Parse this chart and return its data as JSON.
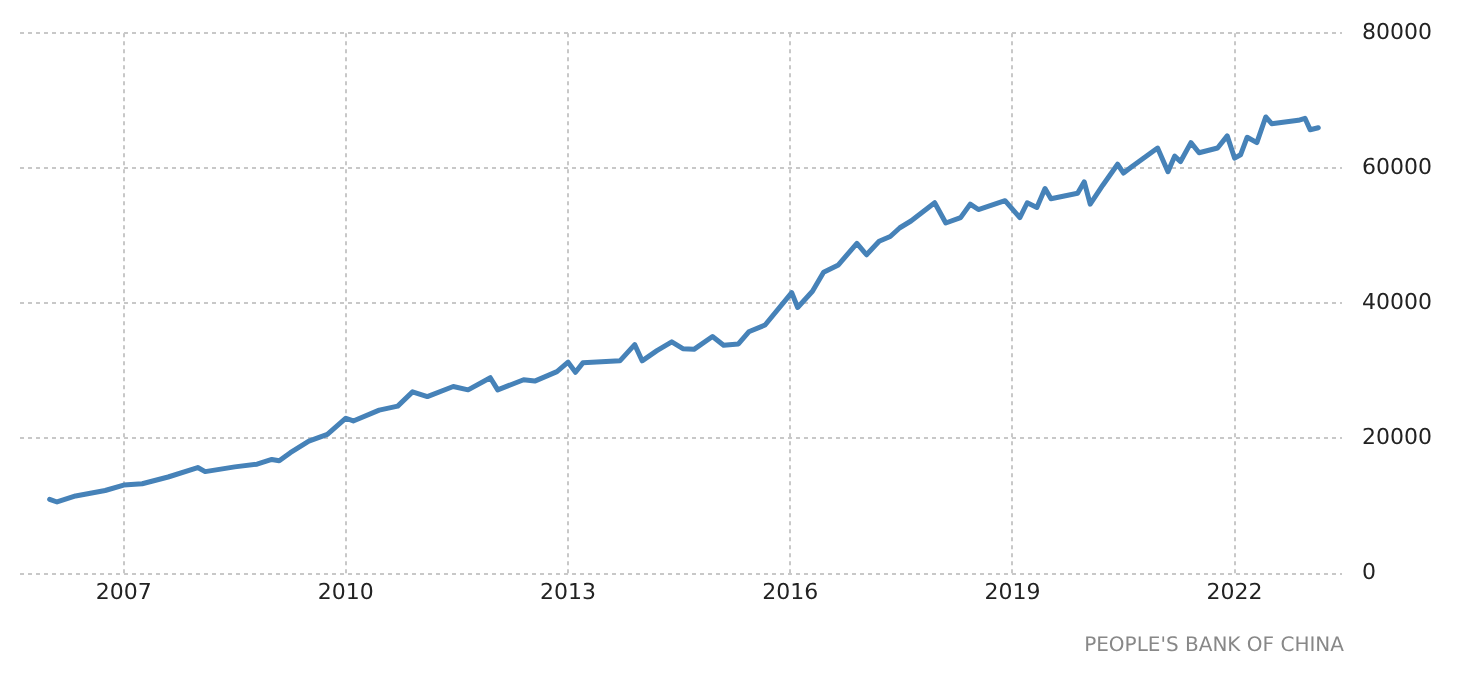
{
  "chart_data": {
    "type": "line",
    "annotations": [
      "PEOPLE'S BANK OF CHINA"
    ],
    "x": [
      2006.0,
      2006.1,
      2006.35,
      2006.75,
      2007.0,
      2007.25,
      2007.6,
      2008.0,
      2008.1,
      2008.5,
      2008.8,
      2009.0,
      2009.1,
      2009.25,
      2009.5,
      2009.75,
      2010.0,
      2010.1,
      2010.45,
      2010.7,
      2010.9,
      2011.1,
      2011.45,
      2011.65,
      2011.95,
      2012.05,
      2012.4,
      2012.55,
      2012.85,
      2013.0,
      2013.1,
      2013.2,
      2013.7,
      2013.9,
      2014.0,
      2014.2,
      2014.4,
      2014.55,
      2014.7,
      2014.95,
      2015.1,
      2015.3,
      2015.44,
      2015.66,
      2016.02,
      2016.1,
      2016.3,
      2016.45,
      2016.65,
      2016.9,
      2017.03,
      2017.2,
      2017.35,
      2017.48,
      2017.63,
      2017.95,
      2018.1,
      2018.3,
      2018.43,
      2018.54,
      2018.9,
      2019.1,
      2019.2,
      2019.33,
      2019.44,
      2019.52,
      2019.88,
      2019.97,
      2020.05,
      2020.22,
      2020.42,
      2020.5,
      2020.62,
      2020.96,
      2021.1,
      2021.19,
      2021.27,
      2021.41,
      2021.52,
      2021.77,
      2021.9,
      2022.0,
      2022.08,
      2022.17,
      2022.3,
      2022.42,
      2022.5,
      2022.86,
      2022.95,
      2023.02,
      2023.13
    ],
    "series": [
      {
        "color": "#4682b8",
        "values": [
          11000,
          10600,
          11500,
          12300,
          13100,
          13300,
          14300,
          15700,
          15100,
          15800,
          16200,
          16900,
          16700,
          17900,
          19600,
          20600,
          23000,
          22600,
          24200,
          24800,
          26900,
          26200,
          27700,
          27200,
          29000,
          27200,
          28700,
          28500,
          29900,
          31300,
          29800,
          31200,
          31500,
          33900,
          31500,
          33000,
          34300,
          33300,
          33200,
          35100,
          33800,
          34000,
          35800,
          36800,
          41600,
          39400,
          41800,
          44600,
          45700,
          48900,
          47200,
          49200,
          49900,
          51200,
          52200,
          54900,
          51900,
          52700,
          54700,
          53900,
          55200,
          52700,
          54900,
          54200,
          57000,
          55500,
          56300,
          58000,
          54700,
          57500,
          60600,
          59300,
          60300,
          63000,
          59500,
          61800,
          61000,
          63800,
          62300,
          63000,
          64800,
          61500,
          62000,
          64600,
          63800,
          67600,
          66600,
          67100,
          67400,
          65700,
          66000
        ]
      }
    ],
    "xlim": [
      2005.6,
      2023.45
    ],
    "xticks": [
      2007,
      2010,
      2013,
      2016,
      2019,
      2022
    ],
    "ylim": [
      0,
      80000
    ],
    "yticks": [
      0,
      20000,
      40000,
      60000,
      80000
    ],
    "grid": true,
    "marker": "none"
  }
}
